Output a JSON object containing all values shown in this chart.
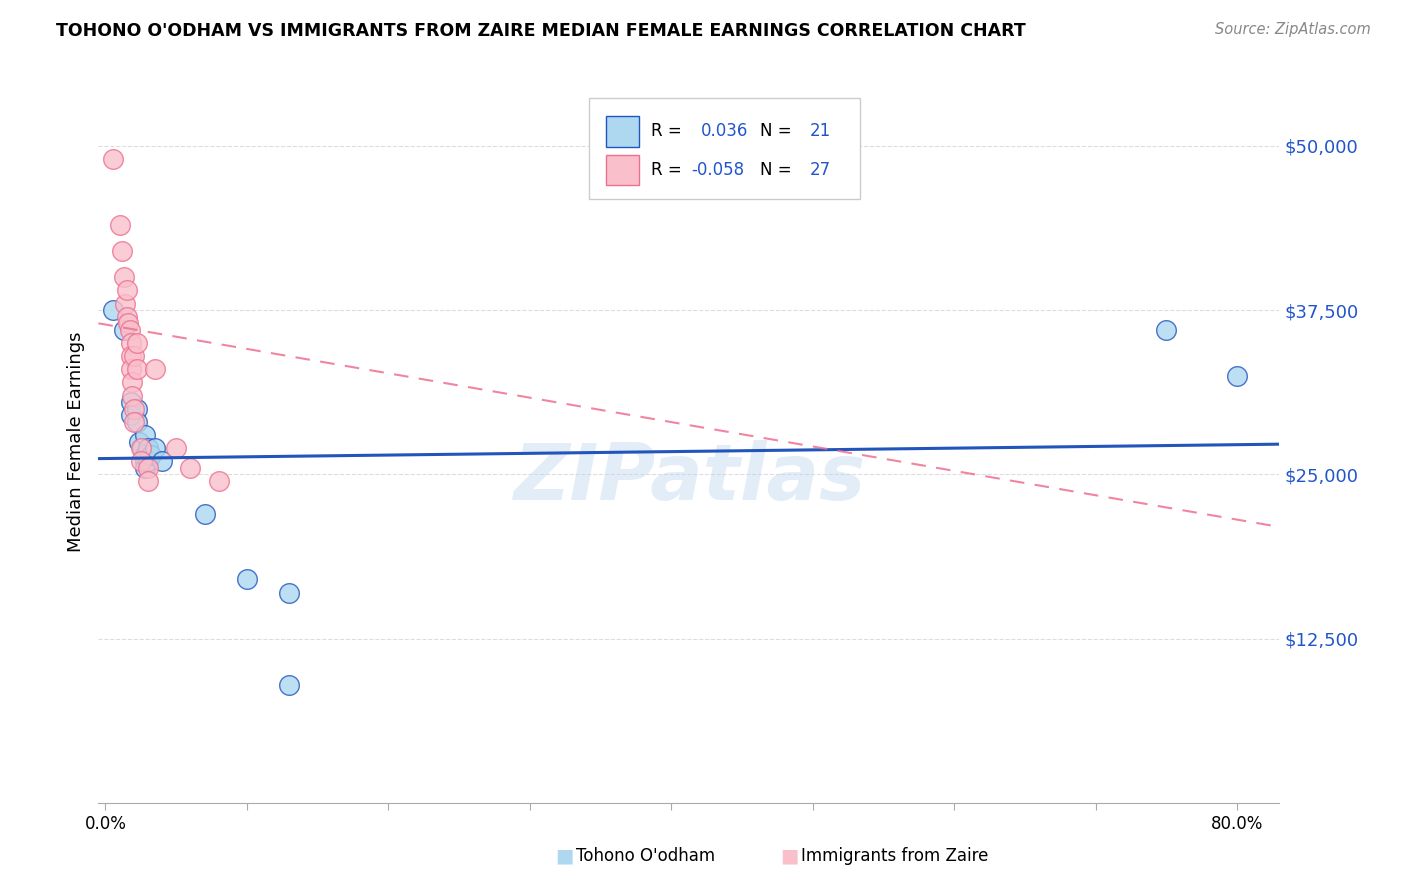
{
  "title": "TOHONO O'ODHAM VS IMMIGRANTS FROM ZAIRE MEDIAN FEMALE EARNINGS CORRELATION CHART",
  "source": "Source: ZipAtlas.com",
  "ylabel": "Median Female Earnings",
  "ytick_labels": [
    "$50,000",
    "$37,500",
    "$25,000",
    "$12,500"
  ],
  "ytick_values": [
    50000,
    37500,
    25000,
    12500
  ],
  "ymin": 0,
  "ymax": 55000,
  "xmin": -0.005,
  "xmax": 0.83,
  "color_blue": "#ADD8F0",
  "color_pink": "#F9C0CB",
  "line_blue": "#2255BB",
  "line_pink": "#EE7090",
  "watermark": "ZIPatlas",
  "blue_points": [
    [
      0.005,
      37500
    ],
    [
      0.013,
      36000
    ],
    [
      0.018,
      30500
    ],
    [
      0.018,
      29500
    ],
    [
      0.022,
      30000
    ],
    [
      0.022,
      29000
    ],
    [
      0.024,
      27500
    ],
    [
      0.026,
      27000
    ],
    [
      0.028,
      28000
    ],
    [
      0.028,
      26500
    ],
    [
      0.028,
      26000
    ],
    [
      0.028,
      25500
    ],
    [
      0.03,
      27000
    ],
    [
      0.03,
      26000
    ],
    [
      0.032,
      26500
    ],
    [
      0.035,
      27000
    ],
    [
      0.04,
      26000
    ],
    [
      0.07,
      22000
    ],
    [
      0.1,
      17000
    ],
    [
      0.13,
      16000
    ],
    [
      0.13,
      9000
    ],
    [
      0.75,
      36000
    ],
    [
      0.8,
      32500
    ]
  ],
  "pink_points": [
    [
      0.005,
      49000
    ],
    [
      0.01,
      44000
    ],
    [
      0.012,
      42000
    ],
    [
      0.013,
      40000
    ],
    [
      0.014,
      38000
    ],
    [
      0.015,
      39000
    ],
    [
      0.015,
      37000
    ],
    [
      0.016,
      36500
    ],
    [
      0.017,
      36000
    ],
    [
      0.018,
      35000
    ],
    [
      0.018,
      34000
    ],
    [
      0.018,
      33000
    ],
    [
      0.019,
      32000
    ],
    [
      0.019,
      31000
    ],
    [
      0.02,
      34000
    ],
    [
      0.02,
      30000
    ],
    [
      0.02,
      29000
    ],
    [
      0.022,
      35000
    ],
    [
      0.022,
      33000
    ],
    [
      0.025,
      27000
    ],
    [
      0.025,
      26000
    ],
    [
      0.03,
      25500
    ],
    [
      0.03,
      24500
    ],
    [
      0.035,
      33000
    ],
    [
      0.05,
      27000
    ],
    [
      0.06,
      25500
    ],
    [
      0.08,
      24500
    ]
  ],
  "blue_line_x": [
    -0.005,
    0.83
  ],
  "blue_line_y": [
    26200,
    27300
  ],
  "pink_line_x": [
    -0.005,
    0.83
  ],
  "pink_line_y": [
    36500,
    21000
  ],
  "xticks": [
    0.0,
    0.1,
    0.2,
    0.3,
    0.4,
    0.5,
    0.6,
    0.7,
    0.8
  ],
  "xtick_labels_show": {
    "0.0": "0.0%",
    "0.8": "80.0%"
  }
}
